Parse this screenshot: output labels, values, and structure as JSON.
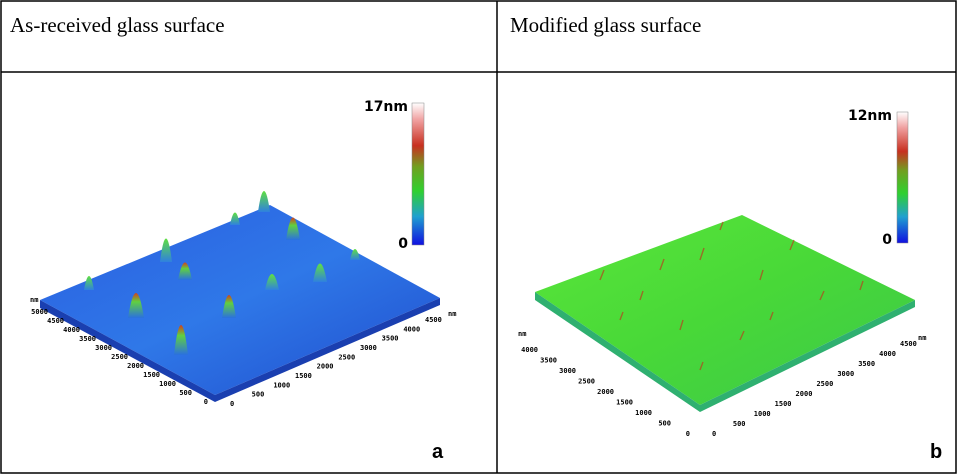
{
  "panels": [
    {
      "header": "As-received glass surface",
      "label": "a",
      "colorbar": {
        "max_label": "17nm",
        "min_label": "0"
      },
      "left_axis": {
        "unit": "nm",
        "ticks": [
          5000,
          4500,
          4000,
          3500,
          3000,
          2500,
          2000,
          1500,
          1000,
          500,
          0
        ]
      },
      "right_axis": {
        "unit": "nm",
        "ticks": [
          0,
          500,
          1000,
          1500,
          2000,
          2500,
          3000,
          3500,
          4000,
          4500
        ]
      }
    },
    {
      "header": "Modified glass surface",
      "label": "b",
      "colorbar": {
        "max_label": "12nm",
        "min_label": "0"
      },
      "left_axis": {
        "unit": "nm",
        "ticks": [
          4000,
          3500,
          3000,
          2500,
          2000,
          1500,
          1000,
          500,
          0
        ]
      },
      "right_axis": {
        "unit": "nm",
        "ticks": [
          0,
          500,
          1000,
          1500,
          2000,
          2500,
          3000,
          3500,
          4000,
          4500
        ]
      }
    }
  ]
}
